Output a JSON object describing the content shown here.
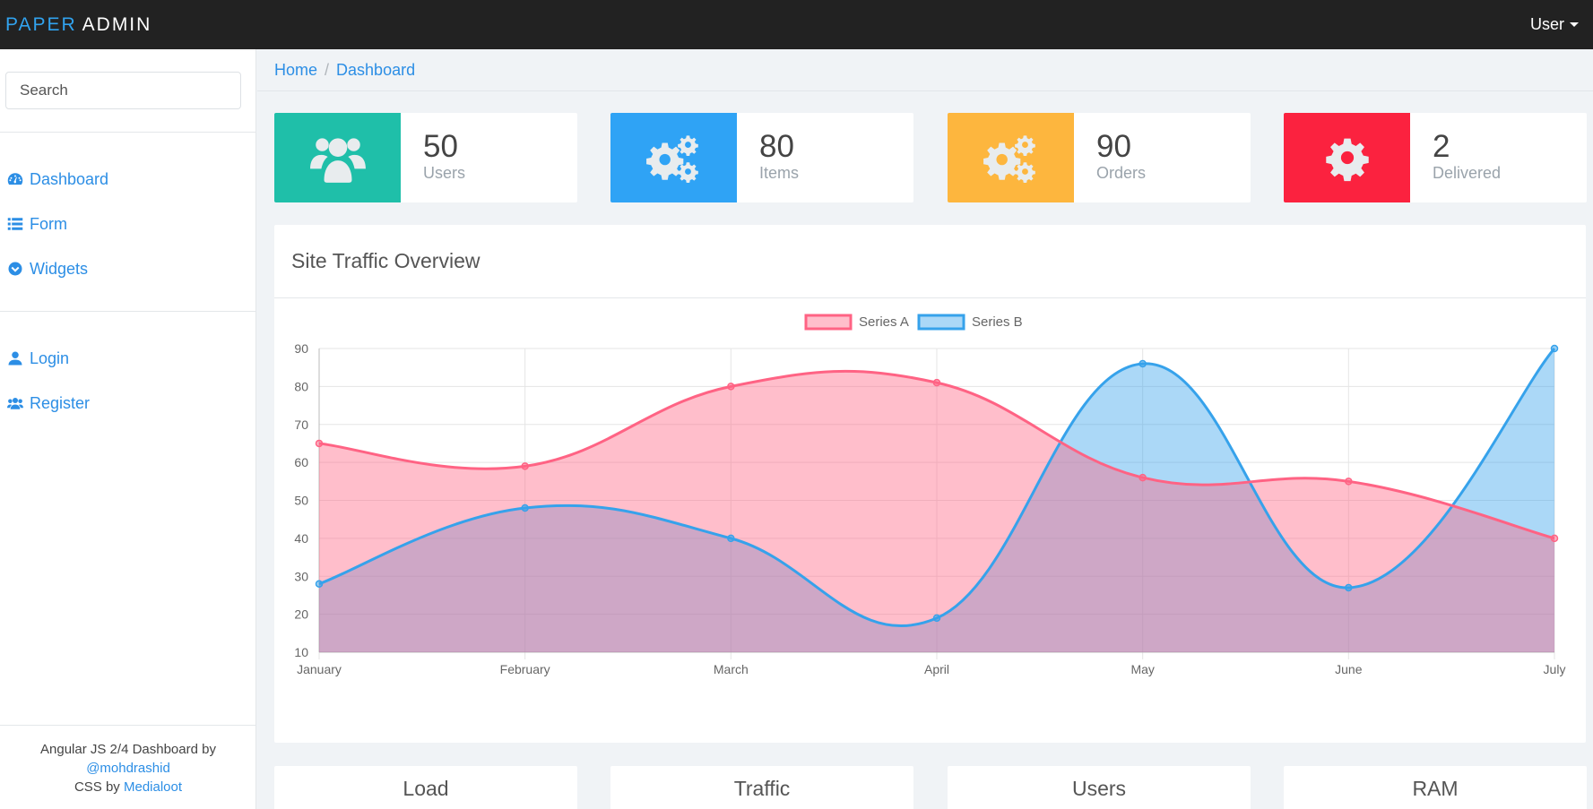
{
  "brand": {
    "part1": "PAPER",
    "part2": "ADMIN"
  },
  "user_menu": {
    "label": "User"
  },
  "sidebar": {
    "search_placeholder": "Search",
    "nav_main": [
      {
        "label": "Dashboard",
        "icon": "dashboard-icon"
      },
      {
        "label": "Form",
        "icon": "list-icon"
      },
      {
        "label": "Widgets",
        "icon": "chevron-circle-down-icon"
      }
    ],
    "nav_account": [
      {
        "label": "Login",
        "icon": "user-icon"
      },
      {
        "label": "Register",
        "icon": "users-icon"
      }
    ],
    "footer": {
      "line1": "Angular JS 2/4 Dashboard by",
      "author": "@mohdrashid",
      "css_prefix": "CSS by",
      "css_source": "Medialoot"
    }
  },
  "breadcrumb": {
    "home": "Home",
    "current": "Dashboard"
  },
  "stats": [
    {
      "value": "50",
      "label": "Users",
      "color": "#1fbfa9",
      "icon": "users-icon"
    },
    {
      "value": "80",
      "label": "Items",
      "color": "#2fa3f5",
      "icon": "cogs-icon"
    },
    {
      "value": "90",
      "label": "Orders",
      "color": "#fdb63e",
      "icon": "cogs-icon"
    },
    {
      "value": "2",
      "label": "Delivered",
      "color": "#fb223f",
      "icon": "cog-icon"
    }
  ],
  "traffic": {
    "title": "Site Traffic Overview",
    "chart_data": {
      "type": "area",
      "categories": [
        "January",
        "February",
        "March",
        "April",
        "May",
        "June",
        "July"
      ],
      "series": [
        {
          "name": "Series A",
          "values": [
            65,
            59,
            80,
            81,
            56,
            55,
            40
          ],
          "color": "#ff6384"
        },
        {
          "name": "Series B",
          "values": [
            28,
            48,
            40,
            19,
            86,
            27,
            90
          ],
          "color": "#36a2eb"
        }
      ],
      "ylim": [
        10,
        90
      ],
      "yticks": [
        10,
        20,
        30,
        40,
        50,
        60,
        70,
        80,
        90
      ],
      "grid": true,
      "legend": "top-center",
      "xlabel": "",
      "ylabel": ""
    }
  },
  "bottom_cards": [
    "Load",
    "Traffic",
    "Users",
    "RAM"
  ]
}
